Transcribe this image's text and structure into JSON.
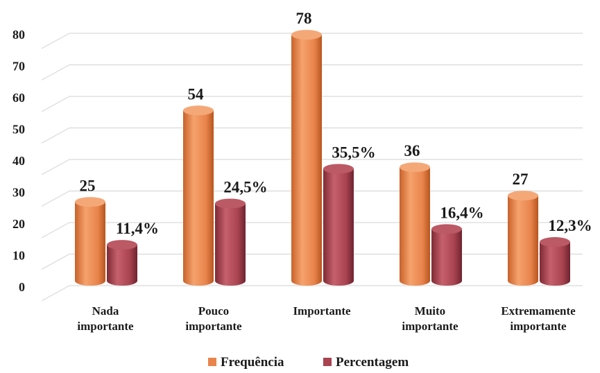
{
  "chart_data": {
    "type": "bar",
    "categories": [
      [
        "Nada",
        "importante"
      ],
      [
        "Pouco",
        "importante"
      ],
      [
        "Importante"
      ],
      [
        "Muito",
        "importante"
      ],
      [
        "Extremamente",
        "importante"
      ]
    ],
    "series": [
      {
        "name": "Frequência",
        "values": [
          25,
          54,
          78,
          36,
          27
        ],
        "labels": [
          "25",
          "54",
          "78",
          "36",
          "27"
        ],
        "color": "#e8844c"
      },
      {
        "name": "Percentagem",
        "values": [
          11.4,
          24.5,
          35.5,
          16.4,
          12.3
        ],
        "labels": [
          "11,4%",
          "24,5%",
          "35,5%",
          "16,4%",
          "12,3%"
        ],
        "color": "#a8434f"
      }
    ],
    "yticks": [
      "0",
      "10",
      "20",
      "30",
      "40",
      "50",
      "60",
      "70",
      "80"
    ],
    "ylim": [
      0,
      80
    ],
    "grid": true,
    "legend_position": "bottom",
    "style": "3d-cylinder"
  }
}
